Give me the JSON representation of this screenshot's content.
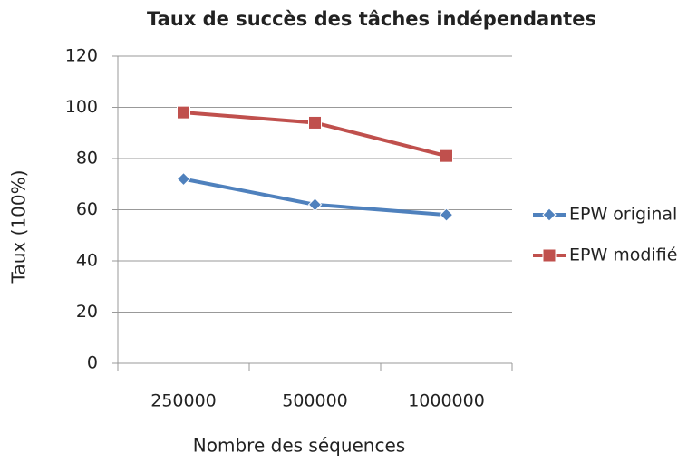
{
  "chart_data": {
    "type": "line",
    "title": "Taux de succès des tâches indépendantes",
    "xlabel": "Nombre des séquences",
    "ylabel": "Taux (100%)",
    "categories": [
      "250000",
      "500000",
      "1000000"
    ],
    "series": [
      {
        "name": "EPW original",
        "color": "#4f81bd",
        "marker": "diamond",
        "values": [
          72,
          62,
          58
        ]
      },
      {
        "name": "EPW modifié",
        "color": "#c0504d",
        "marker": "square",
        "values": [
          98,
          94,
          81
        ]
      }
    ],
    "ylim": [
      0,
      120
    ],
    "yticks": [
      0,
      20,
      40,
      60,
      80,
      100,
      120
    ],
    "grid": true,
    "legend": "right"
  }
}
